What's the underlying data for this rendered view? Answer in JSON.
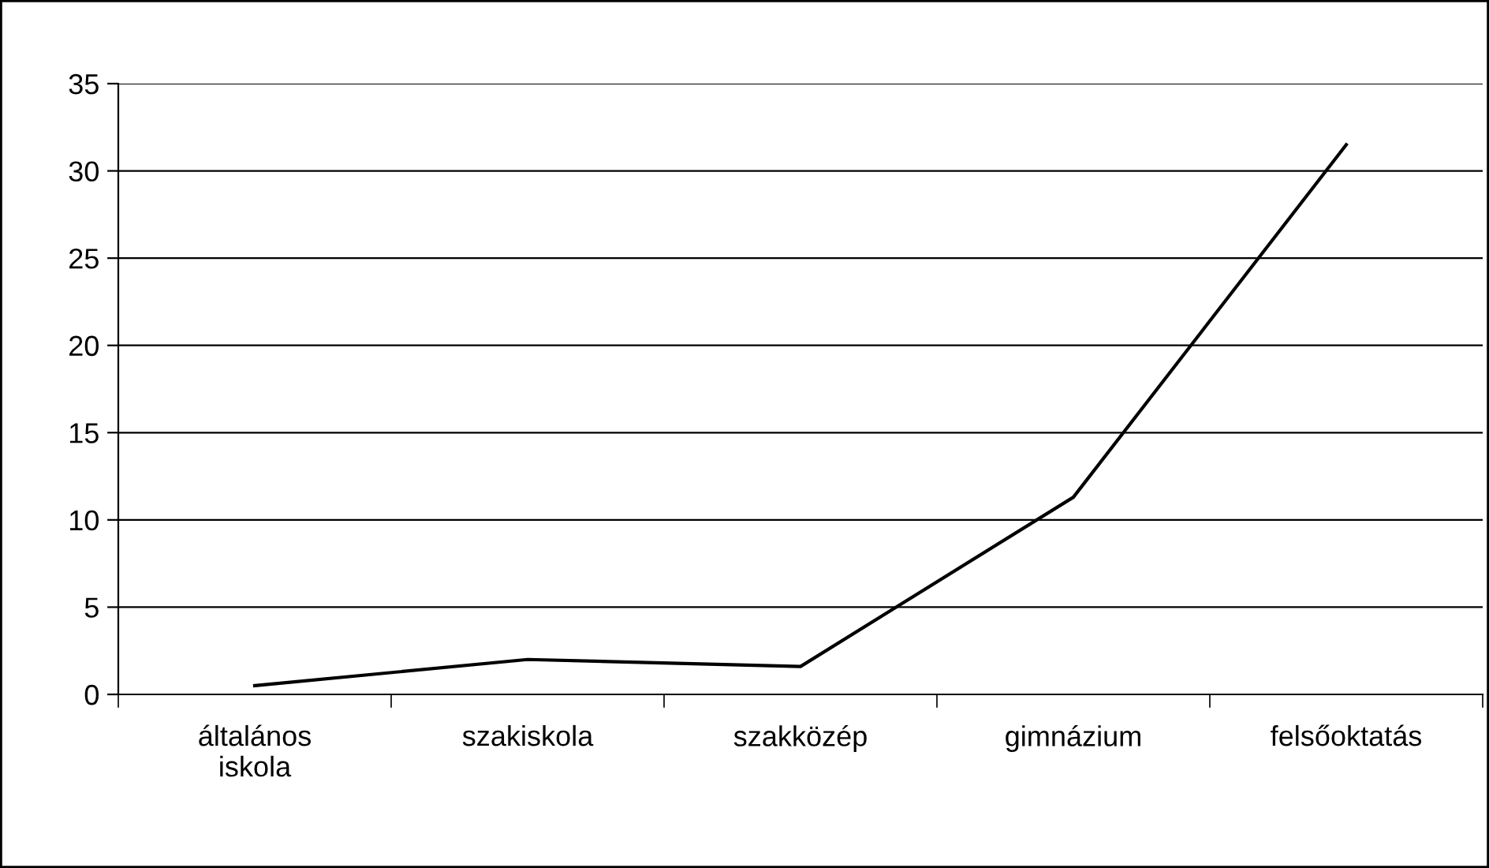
{
  "chart_data": {
    "type": "line",
    "categories": [
      "általános\niskola",
      "szakiskola",
      "szakközép",
      "gimnázium",
      "felsőoktatás"
    ],
    "series": [
      {
        "color": "#000000",
        "values": [
          0.5,
          2.0,
          1.6,
          11.3,
          31.5
        ]
      }
    ],
    "ylim": [
      0,
      35
    ],
    "yticks": [
      0,
      5,
      10,
      15,
      20,
      25,
      30,
      35
    ],
    "grid": "y",
    "legend": false,
    "marker": "none",
    "line_style": "solid"
  }
}
